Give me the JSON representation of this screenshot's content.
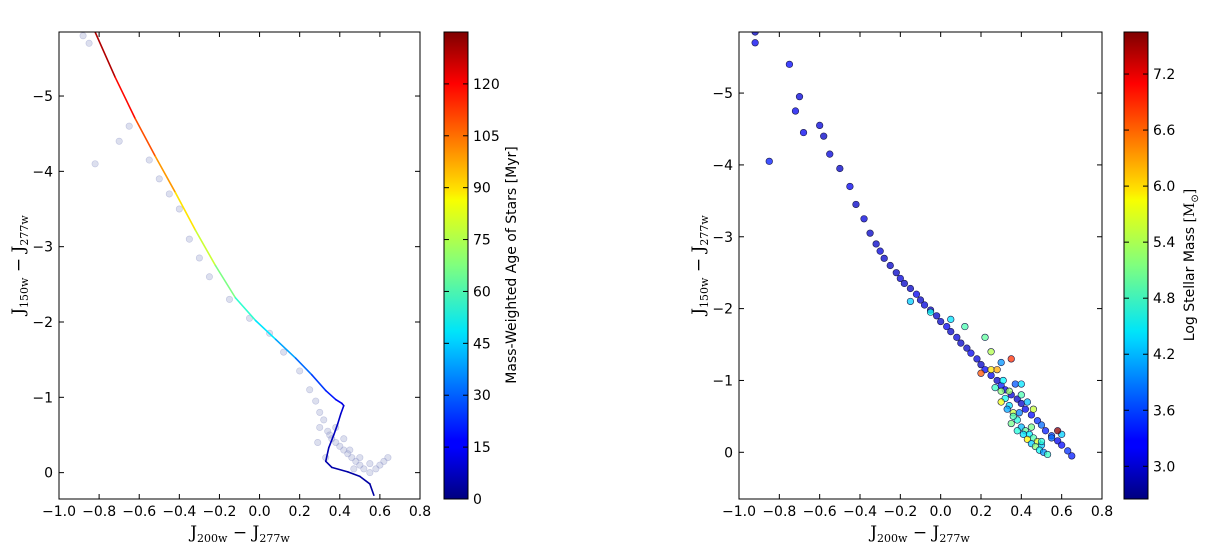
{
  "chart_data": [
    {
      "type": "scatter",
      "panel": "left",
      "xlabel": {
        "main1": "J",
        "sub1": "200w",
        "op": " − ",
        "main2": "J",
        "sub2": "277w"
      },
      "ylabel": {
        "main1": "J",
        "sub1": "150w",
        "op": " − ",
        "main2": "J",
        "sub2": "277w"
      },
      "xlim": [
        -1.0,
        0.8
      ],
      "ylim": [
        0.35,
        -5.85
      ],
      "y_inverted": true,
      "xticks": [
        -1.0,
        -0.8,
        -0.6,
        -0.4,
        -0.2,
        0.0,
        0.2,
        0.4,
        0.6,
        0.8
      ],
      "xtick_labels": [
        "−1.0",
        "−0.8",
        "−0.6",
        "−0.4",
        "−0.2",
        "0.0",
        "0.2",
        "0.4",
        "0.6",
        "0.8"
      ],
      "yticks": [
        0,
        -1,
        -2,
        -3,
        -4,
        -5
      ],
      "ytick_labels": [
        "0",
        "−1",
        "−2",
        "−3",
        "−4",
        "−5"
      ],
      "colorbar": {
        "label": "Mass-Weighted Age of Stars [Myr]",
        "colormap": "jet",
        "range": [
          0,
          135
        ],
        "ticks": [
          0,
          15,
          30,
          45,
          60,
          75,
          90,
          105,
          120
        ],
        "tick_labels": [
          "0",
          "15",
          "30",
          "45",
          "60",
          "75",
          "90",
          "105",
          "120"
        ]
      },
      "track_line": {
        "x": [
          -0.82,
          -0.72,
          -0.62,
          -0.52,
          -0.42,
          -0.32,
          -0.22,
          -0.12,
          -0.02,
          0.08,
          0.18,
          0.26,
          0.33,
          0.38,
          0.41,
          0.42,
          0.405,
          0.39,
          0.37,
          0.345,
          0.33,
          0.36,
          0.44,
          0.5,
          0.55,
          0.57
        ],
        "y": [
          -5.85,
          -5.25,
          -4.7,
          -4.2,
          -3.72,
          -3.22,
          -2.75,
          -2.32,
          -2.02,
          -1.77,
          -1.52,
          -1.3,
          -1.09,
          -0.97,
          -0.92,
          -0.89,
          -0.78,
          -0.65,
          -0.5,
          -0.33,
          -0.15,
          -0.07,
          -0.01,
          0.05,
          0.15,
          0.3
        ],
        "age_myr": [
          135,
          122,
          112,
          103,
          93,
          83,
          72,
          62,
          52,
          43,
          34,
          28,
          22,
          18,
          14,
          12,
          10,
          9,
          8,
          7,
          6,
          6,
          5,
          5,
          5,
          4
        ]
      },
      "scatter_points": {
        "color": "#9aa3cf",
        "x": [
          -0.88,
          -0.85,
          -0.82,
          -0.7,
          -0.65,
          -0.55,
          -0.5,
          -0.45,
          -0.4,
          -0.35,
          -0.3,
          -0.25,
          -0.15,
          -0.05,
          0.05,
          0.12,
          0.2,
          0.25,
          0.28,
          0.3,
          0.32,
          0.34,
          0.36,
          0.38,
          0.4,
          0.42,
          0.44,
          0.46,
          0.48,
          0.5,
          0.52,
          0.55,
          0.58,
          0.6,
          0.62,
          0.64,
          0.3,
          0.35,
          0.45,
          0.5,
          0.55,
          0.38,
          0.42,
          0.47,
          0.33,
          0.29
        ],
        "y": [
          -5.8,
          -5.7,
          -4.1,
          -4.4,
          -4.6,
          -4.15,
          -3.9,
          -3.7,
          -3.5,
          -3.1,
          -2.85,
          -2.6,
          -2.3,
          -2.05,
          -1.85,
          -1.6,
          -1.35,
          -1.1,
          -0.95,
          -0.8,
          -0.7,
          -0.55,
          -0.45,
          -0.4,
          -0.35,
          -0.3,
          -0.25,
          -0.2,
          -0.15,
          -0.1,
          -0.05,
          0.0,
          -0.05,
          -0.1,
          -0.15,
          -0.2,
          -0.6,
          -0.5,
          -0.3,
          -0.2,
          -0.12,
          -0.6,
          -0.45,
          -0.05,
          -0.2,
          -0.4
        ]
      }
    },
    {
      "type": "scatter",
      "panel": "right",
      "xlabel": {
        "main1": "J",
        "sub1": "200w",
        "op": " − ",
        "main2": "J",
        "sub2": "277w"
      },
      "ylabel": {
        "main1": "J",
        "sub1": "150w",
        "op": " − ",
        "main2": "J",
        "sub2": "277w"
      },
      "xlim": [
        -1.0,
        0.8
      ],
      "ylim": [
        0.65,
        -5.85
      ],
      "y_inverted": true,
      "xticks": [
        -1.0,
        -0.8,
        -0.6,
        -0.4,
        -0.2,
        0.0,
        0.2,
        0.4,
        0.6,
        0.8
      ],
      "xtick_labels": [
        "−1.0",
        "−0.8",
        "−0.6",
        "−0.4",
        "−0.2",
        "0.0",
        "0.2",
        "0.4",
        "0.6",
        "0.8"
      ],
      "yticks": [
        0,
        -1,
        -2,
        -3,
        -4,
        -5
      ],
      "ytick_labels": [
        "0",
        "−1",
        "−2",
        "−3",
        "−4",
        "−5"
      ],
      "colorbar": {
        "label_prefix": "Log Stellar Mass ",
        "label_unit": "[M",
        "label_sun": "⊙",
        "label_close": "]",
        "colormap": "jet",
        "range": [
          2.65,
          7.65
        ],
        "ticks": [
          3.0,
          3.6,
          4.2,
          4.8,
          5.4,
          6.0,
          6.6,
          7.2
        ],
        "tick_labels": [
          "3.0",
          "3.6",
          "4.2",
          "4.8",
          "5.4",
          "6.0",
          "6.6",
          "7.2"
        ]
      },
      "points": {
        "x": [
          -0.92,
          -0.92,
          -0.75,
          -0.72,
          -0.7,
          -0.68,
          -0.85,
          -0.6,
          -0.58,
          -0.55,
          -0.5,
          -0.45,
          -0.42,
          -0.38,
          -0.35,
          -0.32,
          -0.3,
          -0.28,
          -0.25,
          -0.22,
          -0.2,
          -0.18,
          -0.15,
          -0.12,
          -0.1,
          -0.08,
          -0.05,
          -0.02,
          0.0,
          0.03,
          0.05,
          0.08,
          0.1,
          0.13,
          0.15,
          0.18,
          0.2,
          0.22,
          0.25,
          0.28,
          0.3,
          0.32,
          0.35,
          0.38,
          0.4,
          0.42,
          0.45,
          0.48,
          0.5,
          0.52,
          0.55,
          0.58,
          0.6,
          0.63,
          0.65,
          -0.15,
          -0.05,
          0.05,
          0.12,
          0.2,
          0.25,
          0.27,
          0.3,
          0.32,
          0.34,
          0.36,
          0.38,
          0.4,
          0.42,
          0.44,
          0.46,
          0.48,
          0.5,
          0.35,
          0.38,
          0.41,
          0.43,
          0.45,
          0.47,
          0.49,
          0.51,
          0.53,
          0.3,
          0.33,
          0.36,
          0.39,
          0.28,
          0.31,
          0.34,
          0.37,
          0.4,
          0.43,
          0.46,
          0.22,
          0.25,
          0.3,
          0.35,
          0.4,
          0.45,
          0.5,
          0.55,
          0.6,
          0.58
        ],
        "y": [
          -5.85,
          -5.7,
          -5.4,
          -4.75,
          -4.95,
          -4.45,
          -4.05,
          -4.55,
          -4.4,
          -4.15,
          -3.95,
          -3.7,
          -3.45,
          -3.25,
          -3.05,
          -2.9,
          -2.8,
          -2.7,
          -2.6,
          -2.5,
          -2.42,
          -2.35,
          -2.28,
          -2.2,
          -2.12,
          -2.05,
          -1.98,
          -1.9,
          -1.82,
          -1.75,
          -1.68,
          -1.6,
          -1.52,
          -1.45,
          -1.38,
          -1.3,
          -1.22,
          -1.15,
          -1.07,
          -1.0,
          -0.93,
          -0.87,
          -0.8,
          -0.74,
          -0.68,
          -0.6,
          -0.52,
          -0.44,
          -0.38,
          -0.3,
          -0.23,
          -0.16,
          -0.1,
          -0.02,
          0.05,
          -2.1,
          -1.95,
          -1.85,
          -1.75,
          -1.1,
          -1.15,
          -0.9,
          -0.85,
          -0.75,
          -0.65,
          -0.55,
          -0.45,
          -0.35,
          -0.3,
          -0.25,
          -0.2,
          -0.15,
          -0.1,
          -0.4,
          -0.3,
          -0.25,
          -0.18,
          -0.12,
          -0.08,
          -0.03,
          0.0,
          0.03,
          -0.7,
          -0.6,
          -0.5,
          -0.55,
          -1.15,
          -1.0,
          -0.85,
          -0.95,
          -0.8,
          -0.7,
          -0.6,
          -1.6,
          -1.4,
          -1.25,
          -1.3,
          -0.95,
          -0.35,
          -0.15,
          -0.2,
          -0.25,
          -0.3
        ],
        "logmass": [
          3.0,
          3.2,
          3.3,
          3.2,
          3.1,
          3.2,
          3.4,
          3.1,
          3.0,
          3.1,
          3.0,
          3.2,
          3.0,
          3.1,
          3.0,
          3.0,
          3.1,
          3.0,
          3.0,
          3.0,
          3.1,
          3.0,
          3.0,
          3.2,
          3.0,
          3.1,
          3.0,
          3.0,
          3.0,
          3.2,
          3.0,
          3.1,
          3.0,
          3.0,
          3.2,
          3.1,
          3.0,
          3.3,
          3.2,
          3.0,
          3.4,
          3.2,
          3.1,
          3.0,
          3.0,
          3.2,
          3.3,
          3.5,
          3.8,
          3.4,
          3.6,
          3.2,
          3.3,
          3.5,
          3.4,
          4.3,
          4.6,
          4.4,
          4.9,
          6.6,
          5.9,
          4.8,
          5.2,
          4.6,
          4.4,
          5.5,
          4.7,
          4.2,
          5.0,
          4.5,
          4.9,
          5.6,
          4.3,
          5.1,
          4.7,
          4.4,
          5.8,
          4.3,
          5.2,
          4.6,
          4.0,
          4.8,
          5.7,
          4.1,
          4.9,
          3.9,
          6.2,
          4.5,
          5.3,
          3.7,
          4.9,
          4.2,
          5.5,
          5.0,
          5.4,
          4.0,
          6.8,
          4.4,
          5.1,
          4.7,
          3.8,
          4.3,
          7.6
        ]
      }
    }
  ]
}
